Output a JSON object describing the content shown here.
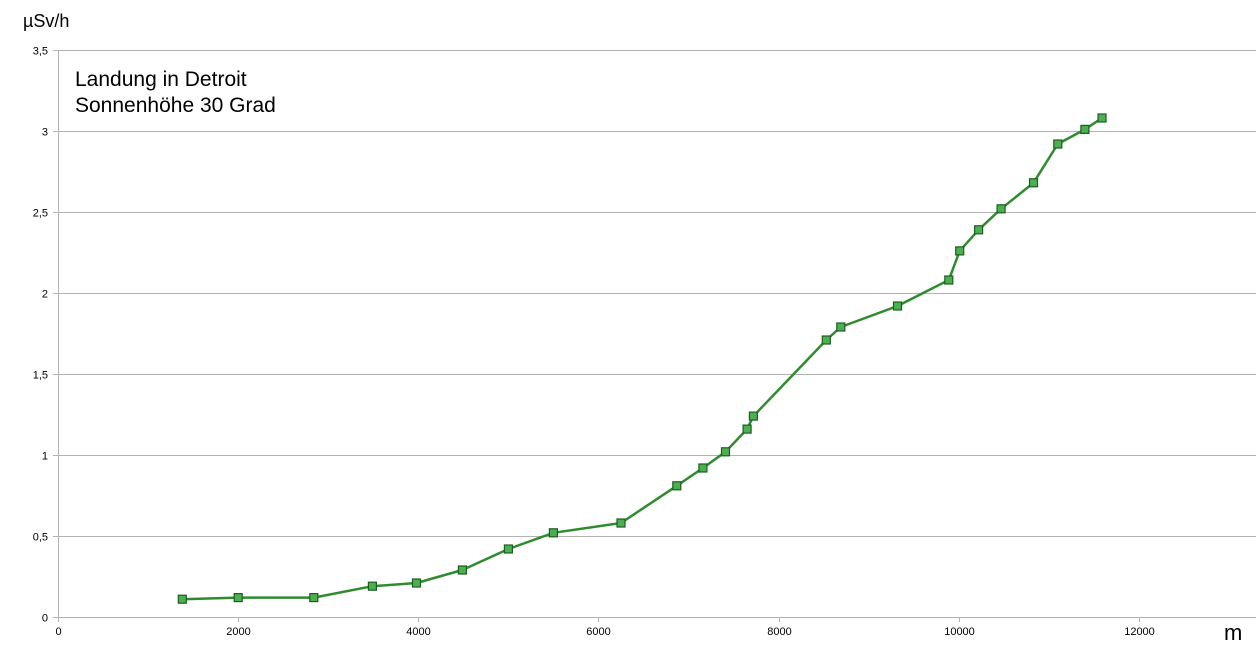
{
  "chart_data": {
    "type": "line",
    "xlabel": "m",
    "ylabel": "µSv/h",
    "annotations": [
      "Landung in Detroit",
      "Sonnenhöhe 30 Grad"
    ],
    "xlim": [
      0,
      13300
    ],
    "ylim": [
      0,
      3.5
    ],
    "x_ticks": [
      {
        "value": 0,
        "label": "0"
      },
      {
        "value": 2000,
        "label": "2000"
      },
      {
        "value": 4000,
        "label": "4000"
      },
      {
        "value": 6000,
        "label": "6000"
      },
      {
        "value": 8000,
        "label": "8000"
      },
      {
        "value": 10000,
        "label": "10000"
      },
      {
        "value": 12000,
        "label": "12000"
      }
    ],
    "y_ticks": [
      {
        "value": 0,
        "label": "0"
      },
      {
        "value": 0.5,
        "label": "0,5"
      },
      {
        "value": 1,
        "label": "1"
      },
      {
        "value": 1.5,
        "label": "1,5"
      },
      {
        "value": 2,
        "label": "2"
      },
      {
        "value": 2.5,
        "label": "2,5"
      },
      {
        "value": 3,
        "label": "3"
      },
      {
        "value": 3.5,
        "label": "3,5"
      }
    ],
    "grid": true,
    "legend": "none",
    "series": [
      {
        "color": "#2e8b2e",
        "marker_color": "#4caf50",
        "marker": "square",
        "x": [
          1380,
          2000,
          2840,
          3490,
          3980,
          4490,
          5000,
          5500,
          6250,
          6870,
          7160,
          7410,
          7650,
          7720,
          8530,
          8690,
          9320,
          9890,
          10010,
          10220,
          10470,
          10830,
          11100,
          11400,
          11590
        ],
        "y": [
          0.11,
          0.12,
          0.12,
          0.19,
          0.21,
          0.29,
          0.42,
          0.52,
          0.58,
          0.81,
          0.92,
          1.02,
          1.16,
          1.24,
          1.71,
          1.79,
          1.92,
          2.08,
          2.26,
          2.39,
          2.52,
          2.68,
          2.92,
          3.01,
          3.08
        ]
      }
    ]
  }
}
